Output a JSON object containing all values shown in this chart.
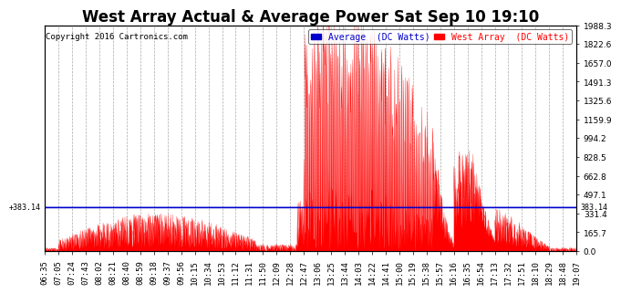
{
  "title": "West Array Actual & Average Power Sat Sep 10 19:10",
  "copyright": "Copyright 2016 Cartronics.com",
  "legend_labels": [
    "Average  (DC Watts)",
    "West Array  (DC Watts)"
  ],
  "legend_colors": [
    "#0000cc",
    "#ff0000"
  ],
  "y_right_ticks": [
    0.0,
    165.7,
    331.4,
    497.1,
    662.8,
    828.5,
    994.2,
    1159.9,
    1325.6,
    1491.3,
    1657.0,
    1822.6,
    1988.3
  ],
  "y_left_annotation": "+383.14",
  "y_right_annotation": "383.14",
  "y_max": 1988.3,
  "y_min": 0.0,
  "avg_line_y": 383.14,
  "background_color": "#ffffff",
  "plot_bg_color": "#ffffff",
  "grid_color": "#aaaaaa",
  "area_color": "#ff0000",
  "avg_color": "#0000cc",
  "x_ticks": [
    "06:35",
    "07:05",
    "07:24",
    "07:43",
    "08:02",
    "08:21",
    "08:40",
    "08:59",
    "09:18",
    "09:37",
    "09:56",
    "10:15",
    "10:34",
    "10:53",
    "11:12",
    "11:31",
    "11:50",
    "12:09",
    "12:28",
    "12:47",
    "13:06",
    "13:25",
    "13:44",
    "14:03",
    "14:22",
    "14:41",
    "15:00",
    "15:19",
    "15:38",
    "15:57",
    "16:16",
    "16:35",
    "16:54",
    "17:13",
    "17:32",
    "17:51",
    "18:10",
    "18:29",
    "18:48",
    "19:07"
  ],
  "title_fontsize": 12,
  "tick_fontsize": 6.5,
  "copyright_fontsize": 6.5,
  "legend_fontsize": 7
}
